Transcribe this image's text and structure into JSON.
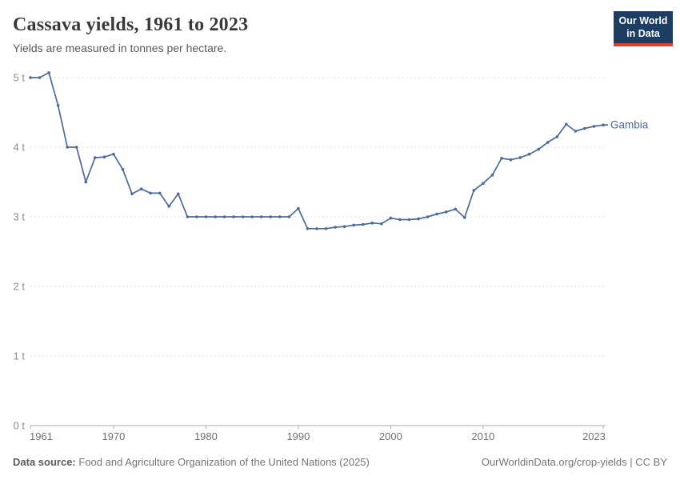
{
  "header": {
    "title": "Cassava yields, 1961 to 2023",
    "subtitle": "Yields are measured in tonnes per hectare."
  },
  "logo": {
    "line1": "Our World",
    "line2": "in Data"
  },
  "chart_data": {
    "type": "line",
    "title": "Cassava yields, 1961 to 2023",
    "ylabel": "tonnes per hectare",
    "legend_position": "end-of-line-label",
    "grid": "horizontal dashed",
    "ylim": [
      0,
      5.25
    ],
    "ytick_suffix": " t",
    "yticks": [
      0,
      1,
      2,
      3,
      4,
      5
    ],
    "xticks": [
      1961,
      1970,
      1980,
      1990,
      2000,
      2010,
      2023
    ],
    "x": [
      1961,
      1962,
      1963,
      1964,
      1965,
      1966,
      1967,
      1968,
      1969,
      1970,
      1971,
      1972,
      1973,
      1974,
      1975,
      1976,
      1977,
      1978,
      1979,
      1980,
      1981,
      1982,
      1983,
      1984,
      1985,
      1986,
      1987,
      1988,
      1989,
      1990,
      1991,
      1992,
      1993,
      1994,
      1995,
      1996,
      1997,
      1998,
      1999,
      2000,
      2001,
      2002,
      2003,
      2004,
      2005,
      2006,
      2007,
      2008,
      2009,
      2010,
      2011,
      2012,
      2013,
      2014,
      2015,
      2016,
      2017,
      2018,
      2019,
      2020,
      2021,
      2022,
      2023
    ],
    "series": [
      {
        "name": "Gambia",
        "color": "#4C6A9C",
        "values": [
          5.0,
          5.0,
          5.07,
          4.6,
          4.0,
          4.0,
          3.5,
          3.85,
          3.86,
          3.9,
          3.68,
          3.33,
          3.4,
          3.34,
          3.34,
          3.15,
          3.33,
          3.0,
          3.0,
          3.0,
          3.0,
          3.0,
          3.0,
          3.0,
          3.0,
          3.0,
          3.0,
          3.0,
          3.0,
          3.12,
          2.83,
          2.83,
          2.83,
          2.85,
          2.86,
          2.88,
          2.89,
          2.91,
          2.9,
          2.98,
          2.96,
          2.96,
          2.97,
          3.0,
          3.04,
          3.07,
          3.11,
          2.99,
          3.38,
          3.48,
          3.6,
          3.84,
          3.82,
          3.85,
          3.9,
          3.97,
          4.07,
          4.15,
          4.33,
          4.23,
          4.27,
          4.3,
          4.32
        ]
      }
    ]
  },
  "footer": {
    "source_label": "Data source:",
    "source_text": "Food and Agriculture Organization of the United Nations (2025)",
    "credit": "OurWorldinData.org/crop-yields | CC BY"
  },
  "colors": {
    "line": "#4C6A9C",
    "grid": "#dddddd",
    "axis": "#a9a9a9",
    "ytick_label": "#8a8a8a",
    "xtick_label": "#6f6f6f",
    "entity_label": "#4C6A9C",
    "logo_bg": "#1d3d63",
    "logo_accent": "#dc3e32"
  }
}
